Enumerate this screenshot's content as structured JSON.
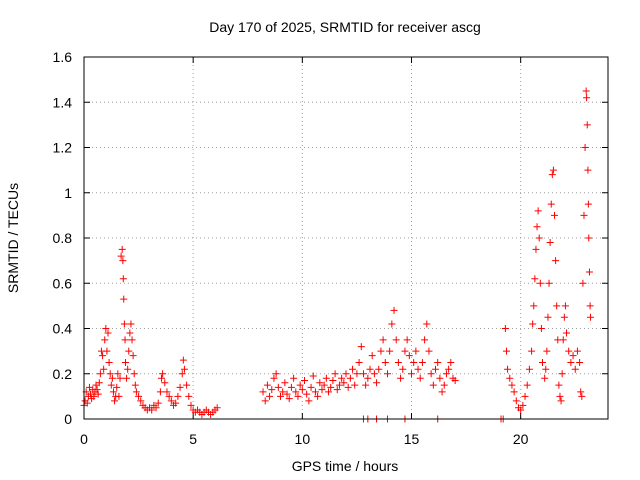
{
  "chart_data": {
    "type": "scatter",
    "title": "Day 170 of 2025, SRMTID for receiver ascg",
    "xlabel": "GPS time / hours",
    "ylabel": "SRMTID / TECUs",
    "xlim": [
      0,
      24
    ],
    "ylim": [
      0,
      1.6
    ],
    "xticks": [
      0,
      5,
      10,
      15,
      20
    ],
    "xtick_labels": [
      "0",
      "5",
      "10",
      "15",
      "20"
    ],
    "yticks": [
      0,
      0.2,
      0.4,
      0.6,
      0.8,
      1.0,
      1.2,
      1.4,
      1.6
    ],
    "ytick_labels": [
      "0",
      "0.2",
      "0.4",
      "0.6",
      "0.8",
      "1",
      "1.2",
      "1.4",
      "1.6"
    ],
    "grid": true,
    "marker": "+",
    "color": "#ff0000",
    "series": [
      {
        "name": "SRMTID",
        "points": [
          [
            0.0,
            0.06
          ],
          [
            0.05,
            0.08
          ],
          [
            0.1,
            0.12
          ],
          [
            0.15,
            0.07
          ],
          [
            0.2,
            0.1
          ],
          [
            0.25,
            0.14
          ],
          [
            0.3,
            0.11
          ],
          [
            0.35,
            0.09
          ],
          [
            0.4,
            0.13
          ],
          [
            0.45,
            0.1
          ],
          [
            0.5,
            0.12
          ],
          [
            0.55,
            0.15
          ],
          [
            0.6,
            0.13
          ],
          [
            0.65,
            0.11
          ],
          [
            0.7,
            0.16
          ],
          [
            0.75,
            0.2
          ],
          [
            0.8,
            0.3
          ],
          [
            0.85,
            0.28
          ],
          [
            0.9,
            0.22
          ],
          [
            0.95,
            0.35
          ],
          [
            1.0,
            0.4
          ],
          [
            1.05,
            0.3
          ],
          [
            1.1,
            0.38
          ],
          [
            1.15,
            0.25
          ],
          [
            1.2,
            0.2
          ],
          [
            1.25,
            0.15
          ],
          [
            1.3,
            0.18
          ],
          [
            1.35,
            0.12
          ],
          [
            1.4,
            0.08
          ],
          [
            1.45,
            0.1
          ],
          [
            1.5,
            0.14
          ],
          [
            1.55,
            0.2
          ],
          [
            1.6,
            0.1
          ],
          [
            1.65,
            0.18
          ],
          [
            1.7,
            0.72
          ],
          [
            1.75,
            0.75
          ],
          [
            1.78,
            0.7
          ],
          [
            1.8,
            0.62
          ],
          [
            1.82,
            0.53
          ],
          [
            1.85,
            0.42
          ],
          [
            1.88,
            0.35
          ],
          [
            1.9,
            0.25
          ],
          [
            1.95,
            0.18
          ],
          [
            2.0,
            0.22
          ],
          [
            2.05,
            0.3
          ],
          [
            2.1,
            0.38
          ],
          [
            2.15,
            0.42
          ],
          [
            2.2,
            0.35
          ],
          [
            2.25,
            0.28
          ],
          [
            2.3,
            0.2
          ],
          [
            2.35,
            0.15
          ],
          [
            2.4,
            0.12
          ],
          [
            2.5,
            0.1
          ],
          [
            2.6,
            0.08
          ],
          [
            2.7,
            0.06
          ],
          [
            2.8,
            0.05
          ],
          [
            2.9,
            0.04
          ],
          [
            3.0,
            0.05
          ],
          [
            3.1,
            0.04
          ],
          [
            3.2,
            0.06
          ],
          [
            3.3,
            0.05
          ],
          [
            3.4,
            0.07
          ],
          [
            3.5,
            0.12
          ],
          [
            3.55,
            0.18
          ],
          [
            3.6,
            0.2
          ],
          [
            3.7,
            0.16
          ],
          [
            3.8,
            0.12
          ],
          [
            3.9,
            0.1
          ],
          [
            4.0,
            0.08
          ],
          [
            4.1,
            0.06
          ],
          [
            4.2,
            0.07
          ],
          [
            4.3,
            0.1
          ],
          [
            4.4,
            0.14
          ],
          [
            4.5,
            0.2
          ],
          [
            4.55,
            0.26
          ],
          [
            4.6,
            0.22
          ],
          [
            4.7,
            0.15
          ],
          [
            4.8,
            0.1
          ],
          [
            4.9,
            0.06
          ],
          [
            5.0,
            0.04
          ],
          [
            5.1,
            0.03
          ],
          [
            5.2,
            0.04
          ],
          [
            5.3,
            0.03
          ],
          [
            5.4,
            0.02
          ],
          [
            5.5,
            0.03
          ],
          [
            5.6,
            0.04
          ],
          [
            5.7,
            0.03
          ],
          [
            5.8,
            0.02
          ],
          [
            5.9,
            0.03
          ],
          [
            6.0,
            0.04
          ],
          [
            6.1,
            0.05
          ],
          [
            8.2,
            0.12
          ],
          [
            8.3,
            0.08
          ],
          [
            8.4,
            0.15
          ],
          [
            8.5,
            0.1
          ],
          [
            8.6,
            0.13
          ],
          [
            8.7,
            0.18
          ],
          [
            8.8,
            0.2
          ],
          [
            8.9,
            0.14
          ],
          [
            9.0,
            0.1
          ],
          [
            9.1,
            0.12
          ],
          [
            9.2,
            0.16
          ],
          [
            9.3,
            0.11
          ],
          [
            9.4,
            0.09
          ],
          [
            9.5,
            0.14
          ],
          [
            9.6,
            0.18
          ],
          [
            9.7,
            0.12
          ],
          [
            9.8,
            0.1
          ],
          [
            9.9,
            0.15
          ],
          [
            10.0,
            0.13
          ],
          [
            10.1,
            0.17
          ],
          [
            10.2,
            0.11
          ],
          [
            10.3,
            0.08
          ],
          [
            10.4,
            0.14
          ],
          [
            10.5,
            0.19
          ],
          [
            10.6,
            0.12
          ],
          [
            10.7,
            0.1
          ],
          [
            10.8,
            0.16
          ],
          [
            10.9,
            0.13
          ],
          [
            11.0,
            0.15
          ],
          [
            11.1,
            0.18
          ],
          [
            11.2,
            0.12
          ],
          [
            11.3,
            0.14
          ],
          [
            11.4,
            0.17
          ],
          [
            11.5,
            0.2
          ],
          [
            11.6,
            0.13
          ],
          [
            11.7,
            0.15
          ],
          [
            11.8,
            0.18
          ],
          [
            11.9,
            0.16
          ],
          [
            12.0,
            0.2
          ],
          [
            12.1,
            0.14
          ],
          [
            12.2,
            0.18
          ],
          [
            12.3,
            0.22
          ],
          [
            12.4,
            0.15
          ],
          [
            12.5,
            0.2
          ],
          [
            12.6,
            0.25
          ],
          [
            12.7,
            0.32
          ],
          [
            12.8,
            0.2
          ],
          [
            12.9,
            0.15
          ],
          [
            13.0,
            0.18
          ],
          [
            13.1,
            0.22
          ],
          [
            13.2,
            0.28
          ],
          [
            13.3,
            0.2
          ],
          [
            13.4,
            0.16
          ],
          [
            13.5,
            0.22
          ],
          [
            13.6,
            0.3
          ],
          [
            13.7,
            0.35
          ],
          [
            13.8,
            0.25
          ],
          [
            13.9,
            0.2
          ],
          [
            14.0,
            0.3
          ],
          [
            14.1,
            0.42
          ],
          [
            14.2,
            0.48
          ],
          [
            14.3,
            0.35
          ],
          [
            14.4,
            0.25
          ],
          [
            14.5,
            0.18
          ],
          [
            14.6,
            0.22
          ],
          [
            14.7,
            0.3
          ],
          [
            14.8,
            0.35
          ],
          [
            14.9,
            0.28
          ],
          [
            15.0,
            0.2
          ],
          [
            15.1,
            0.25
          ],
          [
            15.2,
            0.3
          ],
          [
            15.3,
            0.22
          ],
          [
            15.4,
            0.18
          ],
          [
            15.5,
            0.25
          ],
          [
            15.6,
            0.35
          ],
          [
            15.7,
            0.42
          ],
          [
            15.8,
            0.3
          ],
          [
            15.9,
            0.2
          ],
          [
            16.0,
            0.15
          ],
          [
            16.1,
            0.22
          ],
          [
            16.2,
            0.25
          ],
          [
            16.3,
            0.18
          ],
          [
            16.4,
            0.12
          ],
          [
            16.5,
            0.15
          ],
          [
            16.6,
            0.2
          ],
          [
            16.7,
            0.22
          ],
          [
            16.8,
            0.25
          ],
          [
            16.9,
            0.18
          ],
          [
            17.0,
            0.17
          ],
          [
            12.8,
            0.0
          ],
          [
            13.0,
            0.0
          ],
          [
            13.4,
            0.0
          ],
          [
            13.9,
            0.0
          ],
          [
            14.7,
            0.0
          ],
          [
            16.2,
            0.0
          ],
          [
            19.1,
            0.0
          ],
          [
            19.2,
            0.0
          ],
          [
            19.3,
            0.4
          ],
          [
            19.35,
            0.3
          ],
          [
            19.4,
            0.22
          ],
          [
            19.5,
            0.18
          ],
          [
            19.6,
            0.15
          ],
          [
            19.7,
            0.12
          ],
          [
            19.8,
            0.08
          ],
          [
            19.9,
            0.05
          ],
          [
            20.0,
            0.04
          ],
          [
            20.1,
            0.06
          ],
          [
            20.2,
            0.1
          ],
          [
            20.3,
            0.15
          ],
          [
            20.4,
            0.22
          ],
          [
            20.5,
            0.3
          ],
          [
            20.55,
            0.42
          ],
          [
            20.6,
            0.5
          ],
          [
            20.65,
            0.62
          ],
          [
            20.7,
            0.75
          ],
          [
            20.75,
            0.85
          ],
          [
            20.8,
            0.92
          ],
          [
            20.85,
            0.8
          ],
          [
            20.9,
            0.6
          ],
          [
            20.95,
            0.4
          ],
          [
            21.0,
            0.25
          ],
          [
            21.1,
            0.18
          ],
          [
            21.15,
            0.22
          ],
          [
            21.2,
            0.3
          ],
          [
            21.25,
            0.45
          ],
          [
            21.3,
            0.6
          ],
          [
            21.35,
            0.78
          ],
          [
            21.4,
            0.95
          ],
          [
            21.45,
            1.08
          ],
          [
            21.5,
            1.1
          ],
          [
            21.55,
            0.9
          ],
          [
            21.6,
            0.7
          ],
          [
            21.65,
            0.5
          ],
          [
            21.7,
            0.35
          ],
          [
            21.75,
            0.15
          ],
          [
            21.8,
            0.1
          ],
          [
            21.85,
            0.08
          ],
          [
            21.9,
            0.2
          ],
          [
            21.95,
            0.35
          ],
          [
            22.0,
            0.45
          ],
          [
            22.05,
            0.5
          ],
          [
            22.1,
            0.38
          ],
          [
            22.2,
            0.3
          ],
          [
            22.3,
            0.25
          ],
          [
            22.4,
            0.28
          ],
          [
            22.5,
            0.22
          ],
          [
            22.6,
            0.3
          ],
          [
            22.7,
            0.25
          ],
          [
            22.75,
            0.12
          ],
          [
            22.8,
            0.1
          ],
          [
            22.85,
            0.6
          ],
          [
            22.9,
            0.9
          ],
          [
            22.95,
            1.2
          ],
          [
            23.0,
            1.45
          ],
          [
            23.02,
            1.42
          ],
          [
            23.05,
            1.3
          ],
          [
            23.08,
            1.1
          ],
          [
            23.1,
            0.95
          ],
          [
            23.12,
            0.8
          ],
          [
            23.15,
            0.65
          ],
          [
            23.18,
            0.5
          ],
          [
            23.2,
            0.45
          ]
        ]
      }
    ]
  }
}
